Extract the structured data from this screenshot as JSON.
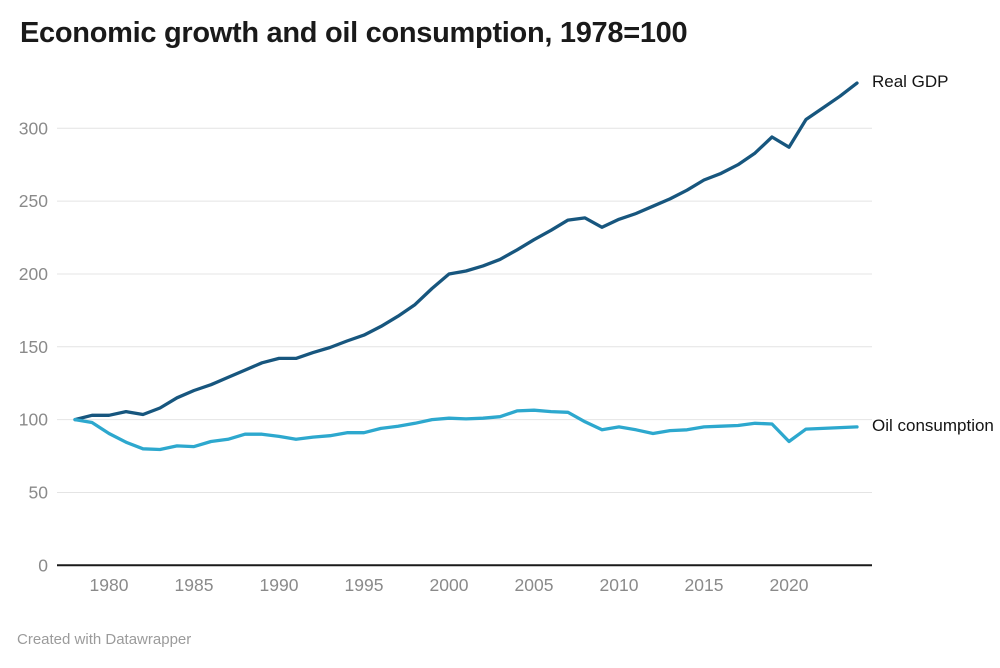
{
  "title": "Economic growth and oil consumption, 1978=100",
  "footer": "Created with Datawrapper",
  "labels": {
    "real_gdp": "Real GDP",
    "oil_consumption": "Oil consumption"
  },
  "colors": {
    "real_gdp_line": "#17567E",
    "oil_consumption_line": "#2DA8CE",
    "gridline": "#e4e4e4",
    "zero_axis": "#1a1a1a",
    "tick_label": "#8a8a8a",
    "title_text": "#1a1a1a",
    "footer_text": "#9b9b9b"
  },
  "chart_data": {
    "type": "line",
    "title": "Economic growth and oil consumption, 1978=100",
    "x": [
      1978,
      1979,
      1980,
      1981,
      1982,
      1983,
      1984,
      1985,
      1986,
      1987,
      1988,
      1989,
      1990,
      1991,
      1992,
      1993,
      1994,
      1995,
      1996,
      1997,
      1998,
      1999,
      2000,
      2001,
      2002,
      2003,
      2004,
      2005,
      2006,
      2007,
      2008,
      2009,
      2010,
      2011,
      2012,
      2013,
      2014,
      2015,
      2016,
      2017,
      2018,
      2019,
      2020,
      2021,
      2022,
      2023,
      2024
    ],
    "series": [
      {
        "name": "Real GDP",
        "values": [
          100,
          103,
          103,
          105.5,
          103.5,
          108,
          115,
          120,
          124,
          129,
          134,
          139,
          142,
          142,
          146,
          149.5,
          154,
          158,
          164,
          171,
          179,
          190,
          200,
          202,
          205.5,
          210,
          216.5,
          223.5,
          230,
          237,
          238.5,
          232,
          237.5,
          241.5,
          246.5,
          251.5,
          257.5,
          264.5,
          269,
          275,
          283,
          294,
          287,
          306,
          314,
          322,
          331
        ]
      },
      {
        "name": "Oil consumption",
        "values": [
          100,
          98,
          90.5,
          84.5,
          80,
          79.5,
          82,
          81.5,
          85,
          86.5,
          90,
          90,
          88.5,
          86.5,
          88,
          89,
          91,
          91,
          94,
          95.5,
          97.5,
          100,
          101,
          100.5,
          101,
          102,
          106,
          106.5,
          105.5,
          105,
          98.5,
          93,
          95,
          93,
          90.5,
          92.5,
          93,
          95,
          95.5,
          96,
          97.5,
          97,
          85,
          93.5,
          94,
          94.5,
          95
        ]
      }
    ],
    "xlabel": "",
    "ylabel": "",
    "ylim": [
      0,
      340
    ],
    "yticks": [
      0,
      50,
      100,
      150,
      200,
      250,
      300
    ],
    "xticks": [
      1980,
      1985,
      1990,
      1995,
      2000,
      2005,
      2010,
      2015,
      2020
    ],
    "grid": "horizontal",
    "legend_position": "direct-labels-at-line-ends"
  }
}
